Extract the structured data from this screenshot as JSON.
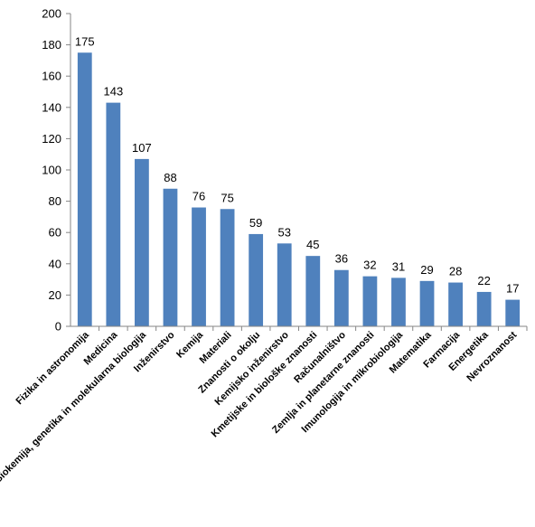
{
  "chart_data": {
    "type": "bar",
    "title": "",
    "xlabel": "",
    "ylabel": "",
    "ylim": [
      0,
      200
    ],
    "yticks": [
      0,
      20,
      40,
      60,
      80,
      100,
      120,
      140,
      160,
      180,
      200
    ],
    "grid": false,
    "legend": "none",
    "bar_color": "#4F81BD",
    "axis_color": "#868686",
    "categories": [
      "Fizika in astronomija",
      "Medicina",
      "Biokemija, genetika in molekularna biologija",
      "Inženirstvo",
      "Kemija",
      "Materiali",
      "Znanosti o okolju",
      "Kemijsko inženirstvo",
      "Kmetijske in biološke znanosti",
      "Računalništvo",
      "Zemlja in planetarne znanosti",
      "Imunologija in mikrobiologija",
      "Matematika",
      "Farmacija",
      "Energetika",
      "Nevroznanost"
    ],
    "values": [
      175,
      143,
      107,
      88,
      76,
      75,
      59,
      53,
      45,
      36,
      32,
      31,
      29,
      28,
      22,
      17
    ]
  }
}
